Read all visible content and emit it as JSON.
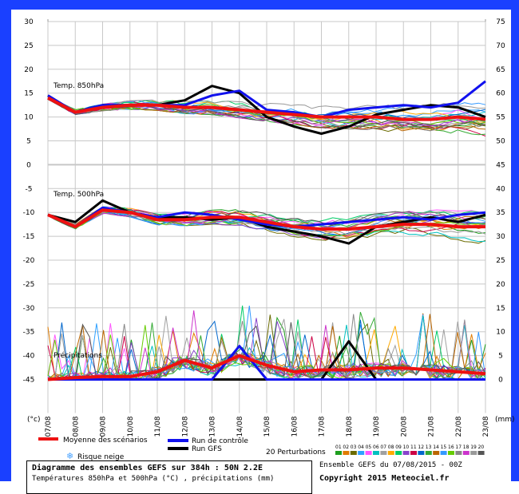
{
  "chart_data": {
    "type": "line",
    "panels": [
      {
        "label": "Temp. 850hPa",
        "unit": "°C"
      },
      {
        "label": "Temp. 500hPa",
        "unit": "°C"
      },
      {
        "label": "Précipitations",
        "unit": "mm"
      }
    ],
    "left_axis": {
      "unit_label": "(°c)",
      "ticks": [
        30,
        25,
        20,
        15,
        10,
        5,
        0,
        -5,
        -10,
        -15,
        -20,
        -25,
        -30,
        -35,
        -40,
        -45
      ]
    },
    "right_axis": {
      "unit_label": "(mm)",
      "ticks": [
        75,
        70,
        65,
        60,
        55,
        50,
        45,
        40,
        35,
        30,
        25,
        20,
        15,
        10,
        5,
        0
      ]
    },
    "x_ticks": [
      "07/08",
      "08/08",
      "09/08",
      "10/08",
      "11/08",
      "12/08",
      "13/08",
      "14/08",
      "15/08",
      "16/08",
      "17/08",
      "18/08",
      "19/08",
      "20/08",
      "21/08",
      "22/08",
      "23/08"
    ],
    "series": [
      {
        "name": "Moyenne des scénarios",
        "color": "#ee1111",
        "t850": [
          14.0,
          11.0,
          12.0,
          12.5,
          12.5,
          12.0,
          12.0,
          11.5,
          11.0,
          10.5,
          10.0,
          10.0,
          10.0,
          9.5,
          9.5,
          10.0,
          9.5
        ],
        "t500": [
          -10.5,
          -13.0,
          -9.5,
          -10.0,
          -11.5,
          -11.5,
          -11.0,
          -11.0,
          -12.0,
          -13.0,
          -13.5,
          -13.5,
          -13.0,
          -12.5,
          -12.5,
          -13.0,
          -13.0
        ],
        "precip": [
          0.0,
          0.2,
          0.3,
          0.3,
          0.8,
          2.0,
          1.2,
          2.5,
          1.5,
          0.8,
          1.0,
          1.0,
          1.2,
          1.2,
          1.0,
          0.8,
          0.6
        ]
      },
      {
        "name": "Run de contrôle",
        "color": "#1111ee",
        "t850": [
          14.5,
          11.0,
          12.5,
          12.5,
          12.5,
          12.5,
          14.5,
          15.5,
          11.5,
          11.0,
          10.0,
          11.5,
          12.0,
          12.5,
          12.0,
          13.0,
          17.5
        ],
        "t500": [
          -10.5,
          -13.0,
          -9.0,
          -10.0,
          -11.0,
          -10.0,
          -10.5,
          -11.5,
          -12.5,
          -13.0,
          -12.5,
          -12.0,
          -11.5,
          -11.0,
          -11.5,
          -10.5,
          -10.0
        ],
        "precip": [
          0.0,
          0.0,
          0.0,
          0.0,
          0.0,
          0.0,
          0.0,
          3.5,
          0.0,
          0.0,
          0.0,
          0.0,
          0.0,
          0.0,
          0.0,
          0.0,
          0.0
        ]
      },
      {
        "name": "Run GFS",
        "color": "#000000",
        "t850": [
          14.5,
          11.0,
          12.5,
          12.5,
          12.5,
          13.5,
          16.5,
          15.0,
          10.0,
          8.0,
          6.5,
          8.0,
          10.5,
          11.5,
          12.5,
          12.0,
          10.0
        ],
        "t500": [
          -10.5,
          -12.0,
          -7.5,
          -10.0,
          -11.0,
          -11.0,
          -11.5,
          -11.0,
          -13.0,
          -14.0,
          -15.0,
          -16.5,
          -13.0,
          -12.0,
          -11.0,
          -12.0,
          -10.5
        ],
        "precip": [
          0.0,
          0.0,
          0.0,
          0.0,
          0.0,
          0.0,
          0.0,
          0.0,
          0.0,
          0.0,
          0.0,
          4.0,
          0.0,
          0.0,
          0.0,
          0.0,
          0.0
        ]
      }
    ],
    "legend": {
      "mean": "Moyenne des scénarios",
      "control": "Run de contrôle",
      "gfs": "Run GFS",
      "snow": "Risque neige",
      "perturbations": "20 Perturbations",
      "perturbation_ids": [
        "01",
        "02",
        "03",
        "04",
        "05",
        "06",
        "07",
        "08",
        "09",
        "10",
        "11",
        "12",
        "13",
        "14",
        "15",
        "16",
        "17",
        "18",
        "19",
        "20"
      ],
      "perturbation_colors": [
        "#1e9e1e",
        "#e07b00",
        "#6b6b00",
        "#2ea0ff",
        "#ff55ff",
        "#00c0c0",
        "#a0a0a0",
        "#ffaa00",
        "#00cc66",
        "#8844cc",
        "#cc0044",
        "#0066cc",
        "#33aa33",
        "#bb6600",
        "#3399ff",
        "#66cc00",
        "#888888",
        "#cc33cc",
        "#999999",
        "#555555"
      ]
    },
    "footer": {
      "title": "Diagramme des ensembles GEFS sur 384h : 50N 2.2E",
      "subtitle": "Températures 850hPa et 500hPa (°C) , précipitations (mm)",
      "run_info": "Ensemble GEFS du 07/08/2015 - 00Z",
      "copyright": "Copyright 2015 Meteociel.fr"
    }
  },
  "colors": {
    "border": "#1a40ff",
    "plot_bg": "#ffffff",
    "grid": "#c8c8c8"
  }
}
